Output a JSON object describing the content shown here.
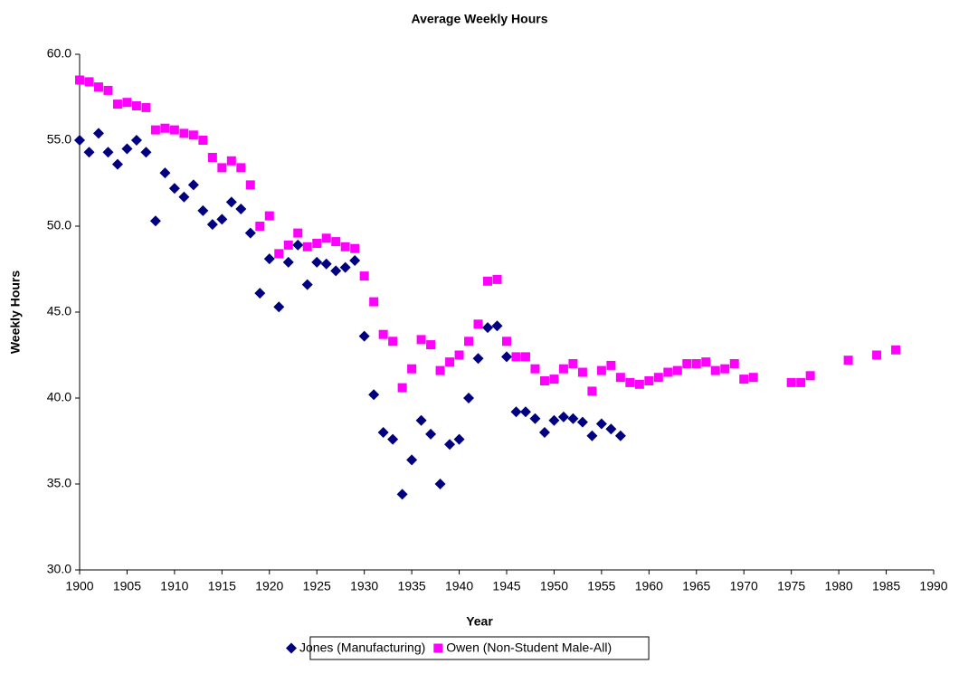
{
  "chart_data": {
    "type": "scatter",
    "title": "Average Weekly Hours",
    "x_label": "Year",
    "y_label": "Weekly Hours",
    "xlim": [
      1900,
      1990
    ],
    "xticks": [
      1900,
      1905,
      1910,
      1915,
      1920,
      1925,
      1930,
      1935,
      1940,
      1945,
      1950,
      1955,
      1960,
      1965,
      1970,
      1975,
      1980,
      1985,
      1990
    ],
    "ylim": [
      30,
      60
    ],
    "yticks": [
      {
        "value": 30,
        "label": "30.0"
      },
      {
        "value": 35,
        "label": "35.0"
      },
      {
        "value": 40,
        "label": "40.0"
      },
      {
        "value": 45,
        "label": "45.0"
      },
      {
        "value": 50,
        "label": "50.0"
      },
      {
        "value": 55,
        "label": "55.0"
      },
      {
        "value": 60,
        "label": "60.0"
      }
    ],
    "grid": false,
    "legend": "bottom",
    "series": [
      {
        "name": "Jones (Manufacturing)",
        "color": "#000080",
        "marker": "diamond",
        "x": [
          1900,
          1901,
          1902,
          1903,
          1904,
          1905,
          1906,
          1907,
          1908,
          1909,
          1910,
          1911,
          1912,
          1913,
          1914,
          1915,
          1916,
          1917,
          1918,
          1919,
          1920,
          1921,
          1922,
          1923,
          1924,
          1925,
          1926,
          1927,
          1928,
          1929,
          1930,
          1931,
          1932,
          1933,
          1934,
          1935,
          1936,
          1937,
          1938,
          1939,
          1940,
          1941,
          1942,
          1943,
          1944,
          1945,
          1946,
          1947,
          1948,
          1949,
          1950,
          1951,
          1952,
          1953,
          1954,
          1955,
          1956,
          1957
        ],
        "values": [
          55.0,
          54.3,
          55.4,
          54.3,
          53.6,
          54.5,
          55.0,
          54.3,
          50.3,
          53.1,
          52.2,
          51.7,
          52.4,
          50.9,
          50.1,
          50.4,
          51.4,
          51.0,
          49.6,
          46.1,
          48.1,
          45.3,
          47.9,
          48.9,
          46.6,
          47.9,
          47.8,
          47.4,
          47.6,
          48.0,
          43.6,
          40.2,
          38.0,
          37.6,
          34.4,
          36.4,
          38.7,
          37.9,
          35.0,
          37.3,
          37.6,
          40.0,
          42.3,
          44.1,
          44.2,
          42.4,
          39.2,
          39.2,
          38.8,
          38.0,
          38.7,
          38.9,
          38.8,
          38.6,
          37.8,
          38.5,
          38.2,
          37.8
        ]
      },
      {
        "name": "Owen (Non-Student Male-All)",
        "color": "#ff00ff",
        "marker": "square",
        "x": [
          1900,
          1901,
          1902,
          1903,
          1904,
          1905,
          1906,
          1907,
          1908,
          1909,
          1910,
          1911,
          1912,
          1913,
          1914,
          1915,
          1916,
          1917,
          1918,
          1919,
          1920,
          1921,
          1922,
          1923,
          1924,
          1925,
          1926,
          1927,
          1928,
          1929,
          1930,
          1931,
          1932,
          1933,
          1934,
          1935,
          1936,
          1937,
          1938,
          1939,
          1940,
          1941,
          1942,
          1943,
          1944,
          1945,
          1946,
          1947,
          1948,
          1949,
          1950,
          1951,
          1952,
          1953,
          1954,
          1955,
          1956,
          1957,
          1958,
          1959,
          1960,
          1961,
          1962,
          1963,
          1964,
          1965,
          1966,
          1967,
          1968,
          1969,
          1970,
          1971,
          1975,
          1976,
          1977,
          1981,
          1984,
          1986
        ],
        "values": [
          58.5,
          58.4,
          58.1,
          57.9,
          57.1,
          57.2,
          57.0,
          56.9,
          55.6,
          55.7,
          55.6,
          55.4,
          55.3,
          55.0,
          54.0,
          53.4,
          53.8,
          53.4,
          52.4,
          50.0,
          50.6,
          48.4,
          48.9,
          49.6,
          48.8,
          49.0,
          49.3,
          49.1,
          48.8,
          48.7,
          47.1,
          45.6,
          43.7,
          43.3,
          40.6,
          41.7,
          43.4,
          43.1,
          41.6,
          42.1,
          42.5,
          43.3,
          44.3,
          46.8,
          46.9,
          43.3,
          42.4,
          42.4,
          41.7,
          41.0,
          41.1,
          41.7,
          42.0,
          41.5,
          40.4,
          41.6,
          41.9,
          41.2,
          40.9,
          40.8,
          41.0,
          41.2,
          41.5,
          41.6,
          42.0,
          42.0,
          42.1,
          41.6,
          41.7,
          42.0,
          41.1,
          41.2,
          40.9,
          40.9,
          41.3,
          42.2,
          42.5,
          42.8
        ]
      }
    ]
  }
}
